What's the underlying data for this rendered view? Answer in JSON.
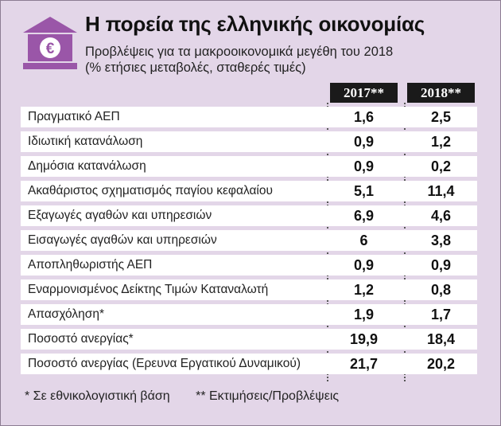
{
  "header": {
    "icon": "bank-euro-icon",
    "title": "Η πορεία της ελληνικής οικονομίας",
    "subtitle_line1": "Προβλέψεις για τα μακροοικονομικά μεγέθη του 2018",
    "subtitle_line2": "(% ετήσιες μεταβολές, σταθερές τιμές)"
  },
  "colors": {
    "background": "#e3d6e8",
    "icon": "#9a56a8",
    "header_bg": "#1a1a1a"
  },
  "table": {
    "columns": [
      "2017**",
      "2018**"
    ],
    "rows": [
      {
        "label": "Πραγματικό ΑΕΠ",
        "v2017": "1,6",
        "v2018": "2,5"
      },
      {
        "label": "Ιδιωτική κατανάλωση",
        "v2017": "0,9",
        "v2018": "1,2"
      },
      {
        "label": "Δημόσια κατανάλωση",
        "v2017": "0,9",
        "v2018": "0,2"
      },
      {
        "label": "Ακαθάριστος σχηματισμός παγίου κεφαλαίου",
        "v2017": "5,1",
        "v2018": "11,4"
      },
      {
        "label": "Εξαγωγές αγαθών και υπηρεσιών",
        "v2017": "6,9",
        "v2018": "4,6"
      },
      {
        "label": "Εισαγωγές αγαθών και υπηρεσιών",
        "v2017": "6",
        "v2018": "3,8"
      },
      {
        "label": "Αποπληθωριστής ΑΕΠ",
        "v2017": "0,9",
        "v2018": "0,9"
      },
      {
        "label": "Εναρμονισμένος Δείκτης Τιμών Καταναλωτή",
        "v2017": "1,2",
        "v2018": "0,8"
      },
      {
        "label": "Απασχόληση*",
        "v2017": "1,9",
        "v2018": "1,7"
      },
      {
        "label": "Ποσοστό ανεργίας*",
        "v2017": "19,9",
        "v2018": "18,4"
      },
      {
        "label": "Ποσοστό ανεργίας (Ερευνα Εργατικού Δυναμικού)",
        "v2017": "21,7",
        "v2018": "20,2"
      }
    ]
  },
  "footnotes": {
    "note1": "* Σε εθνικολογιστική βάση",
    "note2": "** Εκτιμήσεις/Προβλέψεις"
  }
}
